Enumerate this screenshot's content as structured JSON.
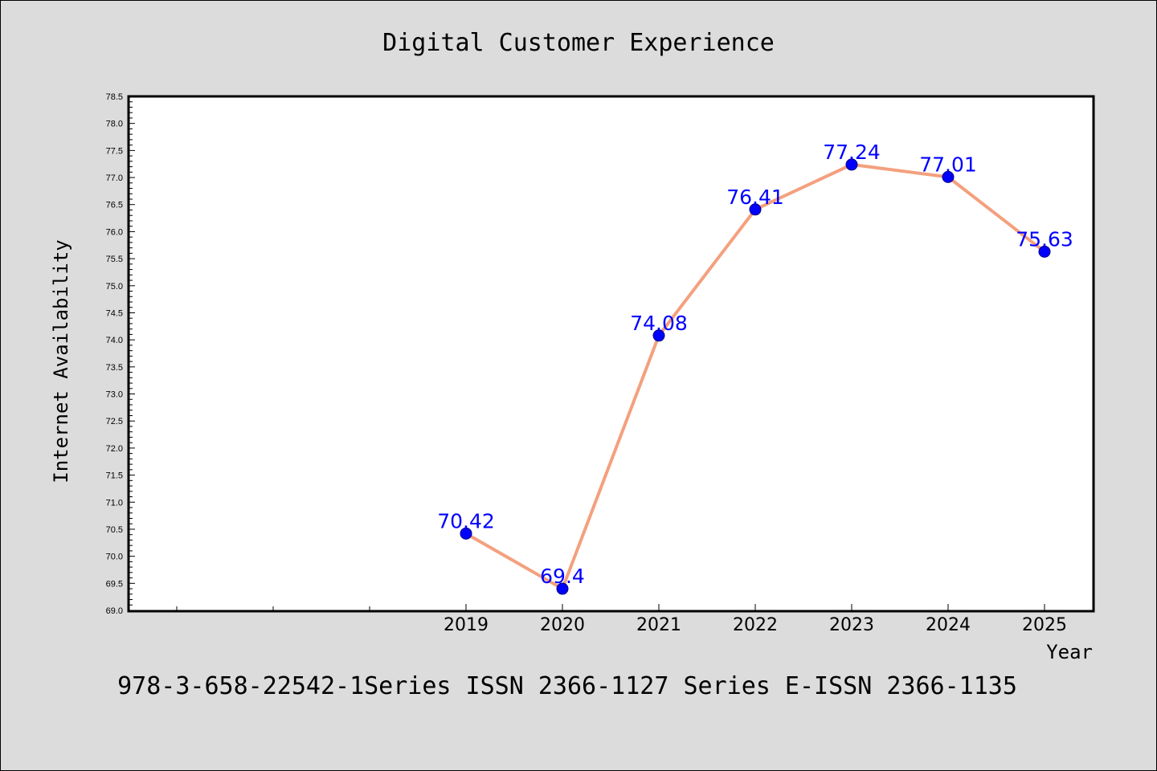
{
  "chart_data": {
    "type": "line",
    "title": "Digital Customer Experience",
    "xlabel": "Year",
    "ylabel": "Internet Availability",
    "categories": [
      "2019",
      "2020",
      "2021",
      "2022",
      "2023",
      "2024",
      "2025"
    ],
    "series": [
      {
        "values": [
          70.42,
          69.4,
          74.08,
          76.41,
          77.24,
          77.01,
          75.63
        ]
      }
    ],
    "data_labels": [
      "70.42",
      "69.4",
      "74.08",
      "76.41",
      "77.24",
      "77.01",
      "75.63"
    ],
    "ylim": [
      69.0,
      78.5
    ],
    "yticks": [
      "69.0",
      "69.5",
      "70.0",
      "70.5",
      "71.0",
      "71.5",
      "72.0",
      "72.5",
      "73.0",
      "73.5",
      "74.0",
      "74.5",
      "75.0",
      "75.5",
      "76.0",
      "76.5",
      "77.0",
      "77.5",
      "78.0",
      "78.5"
    ],
    "grid": false,
    "colors": {
      "line": "#f4a07e",
      "marker": "#0000ff",
      "marker_edge": "#000080",
      "label": "#0000ff",
      "background": "#dcdcdc",
      "plot_area": "#ffffff"
    }
  },
  "footer": "978-3-658-22542-1Series ISSN 2366-1127 Series E-ISSN 2366-1135"
}
